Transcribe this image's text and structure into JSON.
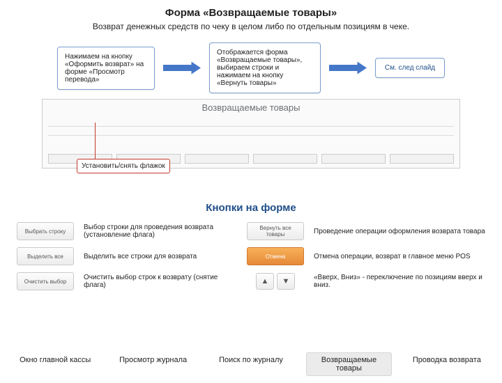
{
  "title": "Форма «Возвращаемые товары»",
  "subtitle": "Возврат денежных средств по чеку в целом либо по отдельным позициям в чеке.",
  "flow": {
    "box1": "Нажимаем на кнопку «Оформить возврат» на форме «Просмотр перевода»",
    "box2": "Отображается форма «Возвращаемые товары», выбираем строки и нажимаем на кнопку «Вернуть товары»",
    "box3": "См. след слайд"
  },
  "screenshot_title": "Возвращаемые товары",
  "callout": "Установить/снять флажок",
  "section_title": "Кнопки на форме",
  "buttons": [
    {
      "label": "Выбрать строку",
      "orange": false,
      "desc": "Выбор строки для проведения возврата (установление флага)"
    },
    {
      "label": "Вернуть все товары",
      "orange": false,
      "desc": "Проведение операции оформления возврата товара"
    },
    {
      "label": "Выделить все",
      "orange": false,
      "desc": "Выделить все строки для возврата"
    },
    {
      "label": "Отмена",
      "orange": true,
      "desc": "Отмена операции, возврат в главное меню POS"
    },
    {
      "label": "Очистить выбор",
      "orange": false,
      "desc": "Очистить выбор строк к возврату (снятие флага)"
    },
    {
      "label": "updown",
      "orange": false,
      "desc": "«Вверх, Вниз» - переключение по позициям вверх и вниз."
    }
  ],
  "arrows": {
    "up": "▲",
    "down": "▼"
  },
  "tabs": {
    "items": [
      "Окно главной кассы",
      "Просмотр журнала",
      "Поиск по журналу",
      "Возвращаемые товары",
      "Проводка возврата"
    ],
    "active": 3
  }
}
